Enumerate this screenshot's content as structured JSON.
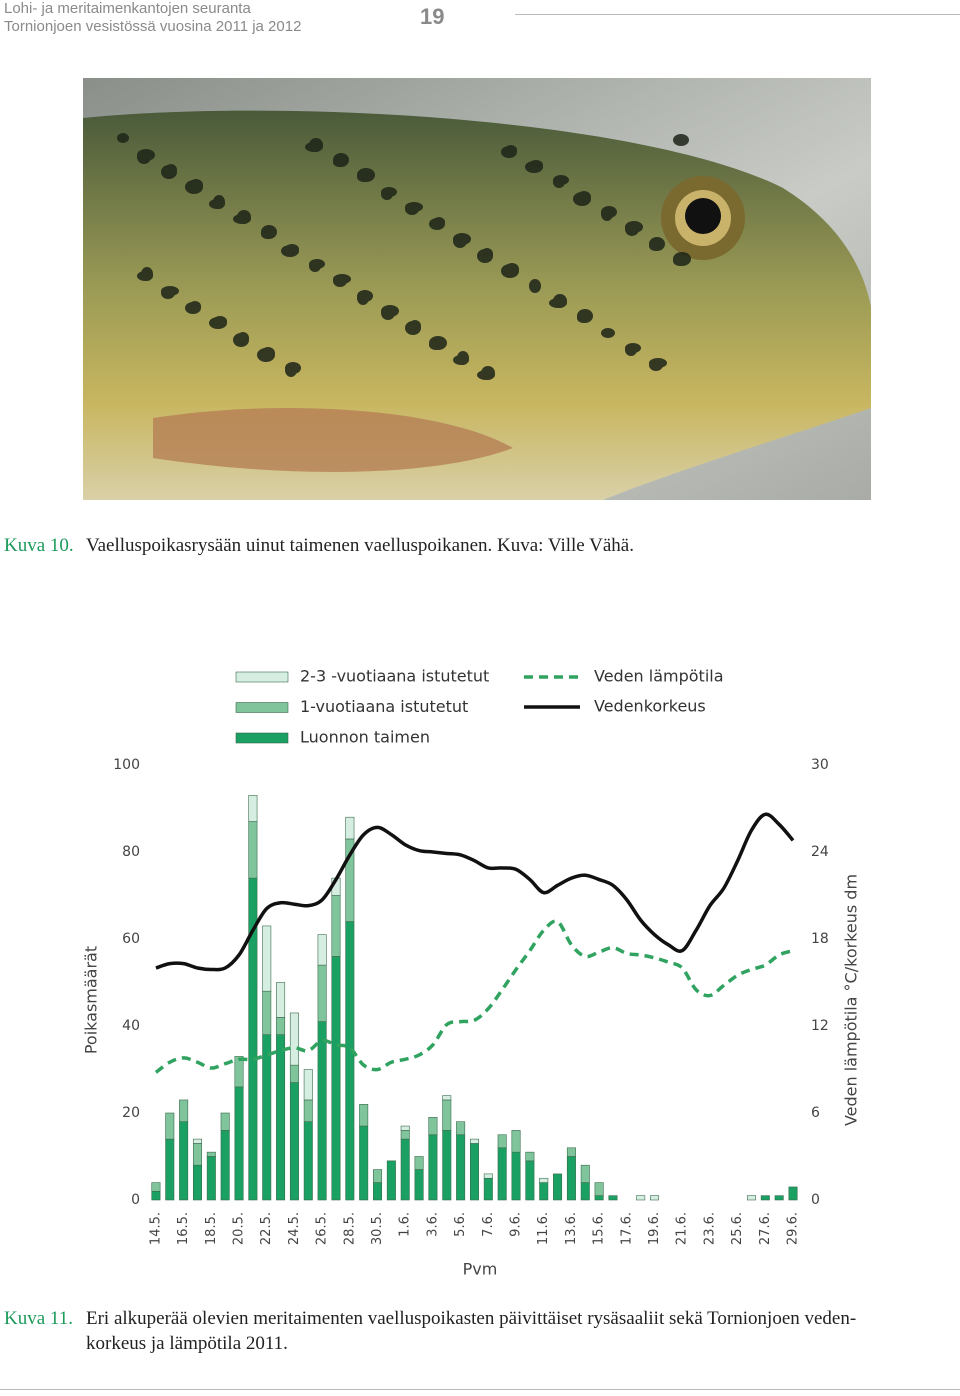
{
  "header": {
    "lines": [
      "Lohi- ja meritaimenkantojen seuranta",
      "Tornionjoen vesistössä vuosina 2011 ja 2012"
    ],
    "page_number": "19"
  },
  "figure_10": {
    "label": "Kuva 10.",
    "caption": "Vaelluspoikasrysään uinut taimenen vaelluspoikanen. Kuva: Ville Vähä."
  },
  "chart_data": {
    "type": "bar",
    "stacked": true,
    "xlabel": "Pvm",
    "ylabel": "Poikasmäärät",
    "y2label": "Veden lämpötila °C/korkeus dm",
    "categories": [
      "14.5.",
      null,
      "16.5.",
      null,
      "18.5.",
      null,
      "20.5.",
      null,
      "22.5.",
      null,
      "24.5.",
      null,
      "26.5.",
      null,
      "28.5.",
      null,
      "30.5.",
      null,
      "1.6.",
      null,
      "3.6.",
      null,
      "5.6.",
      null,
      "7.6.",
      null,
      "9.6.",
      null,
      "11.6.",
      null,
      "13.6.",
      null,
      "15.6.",
      null,
      "17.6.",
      null,
      "19.6.",
      null,
      "21.6.",
      null,
      "23.6.",
      null,
      "25.6.",
      null,
      "27.6.",
      null,
      "29.6."
    ],
    "series": [
      {
        "name": "Luonnon taimen",
        "color": "#1aa062",
        "values": [
          2,
          14,
          18,
          8,
          10,
          16,
          26,
          74,
          38,
          38,
          27,
          18,
          41,
          56,
          64,
          17,
          4,
          9,
          14,
          7,
          15,
          16,
          15,
          13,
          5,
          12,
          11,
          9,
          4,
          6,
          10,
          4,
          1,
          1,
          0,
          0,
          0,
          0,
          0,
          0,
          0,
          0,
          0,
          0,
          1,
          1,
          3
        ]
      },
      {
        "name": "1-vuotiaana istutetut",
        "color": "#80c49c",
        "values": [
          2,
          6,
          5,
          5,
          1,
          4,
          7,
          13,
          10,
          4,
          4,
          5,
          13,
          14,
          19,
          5,
          3,
          0,
          2,
          3,
          4,
          7,
          3,
          0,
          0,
          3,
          5,
          2,
          0,
          0,
          2,
          4,
          3,
          0,
          0,
          0,
          0,
          0,
          0,
          0,
          0,
          0,
          0,
          0,
          0,
          0,
          0
        ]
      },
      {
        "name": "2-3 -vuotiaana istutetut",
        "color": "#d6eee1",
        "values": [
          0,
          0,
          0,
          1,
          0,
          0,
          0,
          6,
          15,
          8,
          12,
          7,
          7,
          4,
          5,
          0,
          0,
          0,
          1,
          0,
          0,
          1,
          0,
          1,
          1,
          0,
          0,
          0,
          1,
          0,
          0,
          0,
          0,
          0,
          0,
          1,
          1,
          0,
          0,
          0,
          0,
          0,
          0,
          1,
          0,
          0,
          0
        ]
      },
      {
        "name": "Veden lämpötila",
        "color": "#2fa35f",
        "type": "line",
        "dashed": true,
        "axis": "y2",
        "values": [
          8.8,
          9.5,
          9.8,
          9.5,
          9.1,
          9.4,
          9.7,
          9.7,
          10.0,
          10.3,
          10.5,
          10.3,
          11.0,
          10.7,
          10.5,
          9.3,
          9.0,
          9.5,
          9.7,
          10.0,
          10.7,
          12.1,
          12.3,
          12.4,
          13.2,
          14.5,
          15.9,
          17.2,
          18.6,
          19.2,
          17.6,
          16.8,
          17.1,
          17.4,
          17.0,
          16.9,
          16.7,
          16.4,
          16.0,
          14.5,
          14.1,
          14.8,
          15.5,
          15.9,
          16.2,
          16.9,
          17.2
        ]
      },
      {
        "name": "Vedenkorkeus",
        "color": "#111111",
        "type": "line",
        "dashed": false,
        "axis": "y2",
        "values": [
          16.0,
          16.3,
          16.3,
          16.0,
          15.9,
          16.0,
          16.9,
          18.6,
          20.1,
          20.5,
          20.4,
          20.3,
          20.7,
          22.1,
          23.8,
          25.2,
          25.7,
          25.2,
          24.5,
          24.1,
          24.0,
          23.9,
          23.8,
          23.4,
          22.9,
          22.9,
          22.8,
          22.1,
          21.2,
          21.7,
          22.2,
          22.4,
          22.1,
          21.7,
          20.7,
          19.3,
          18.3,
          17.6,
          17.2,
          18.6,
          20.3,
          21.5,
          23.4,
          25.5,
          26.6,
          25.9,
          24.8
        ]
      }
    ],
    "ylim": [
      0,
      100
    ],
    "yticks": [
      0,
      20,
      40,
      60,
      80,
      100
    ],
    "y2lim": [
      0,
      30
    ],
    "y2ticks": [
      0,
      6,
      12,
      18,
      24,
      30
    ],
    "grid": false
  },
  "figure_11": {
    "label": "Kuva 11.",
    "caption_lines": [
      "Eri alkuperää olevien meritaimenten vaelluspoikasten päivittäiset rysäsaaliit sekä Tornionjoen veden-",
      "korkeus ja lämpötila 2011."
    ]
  }
}
